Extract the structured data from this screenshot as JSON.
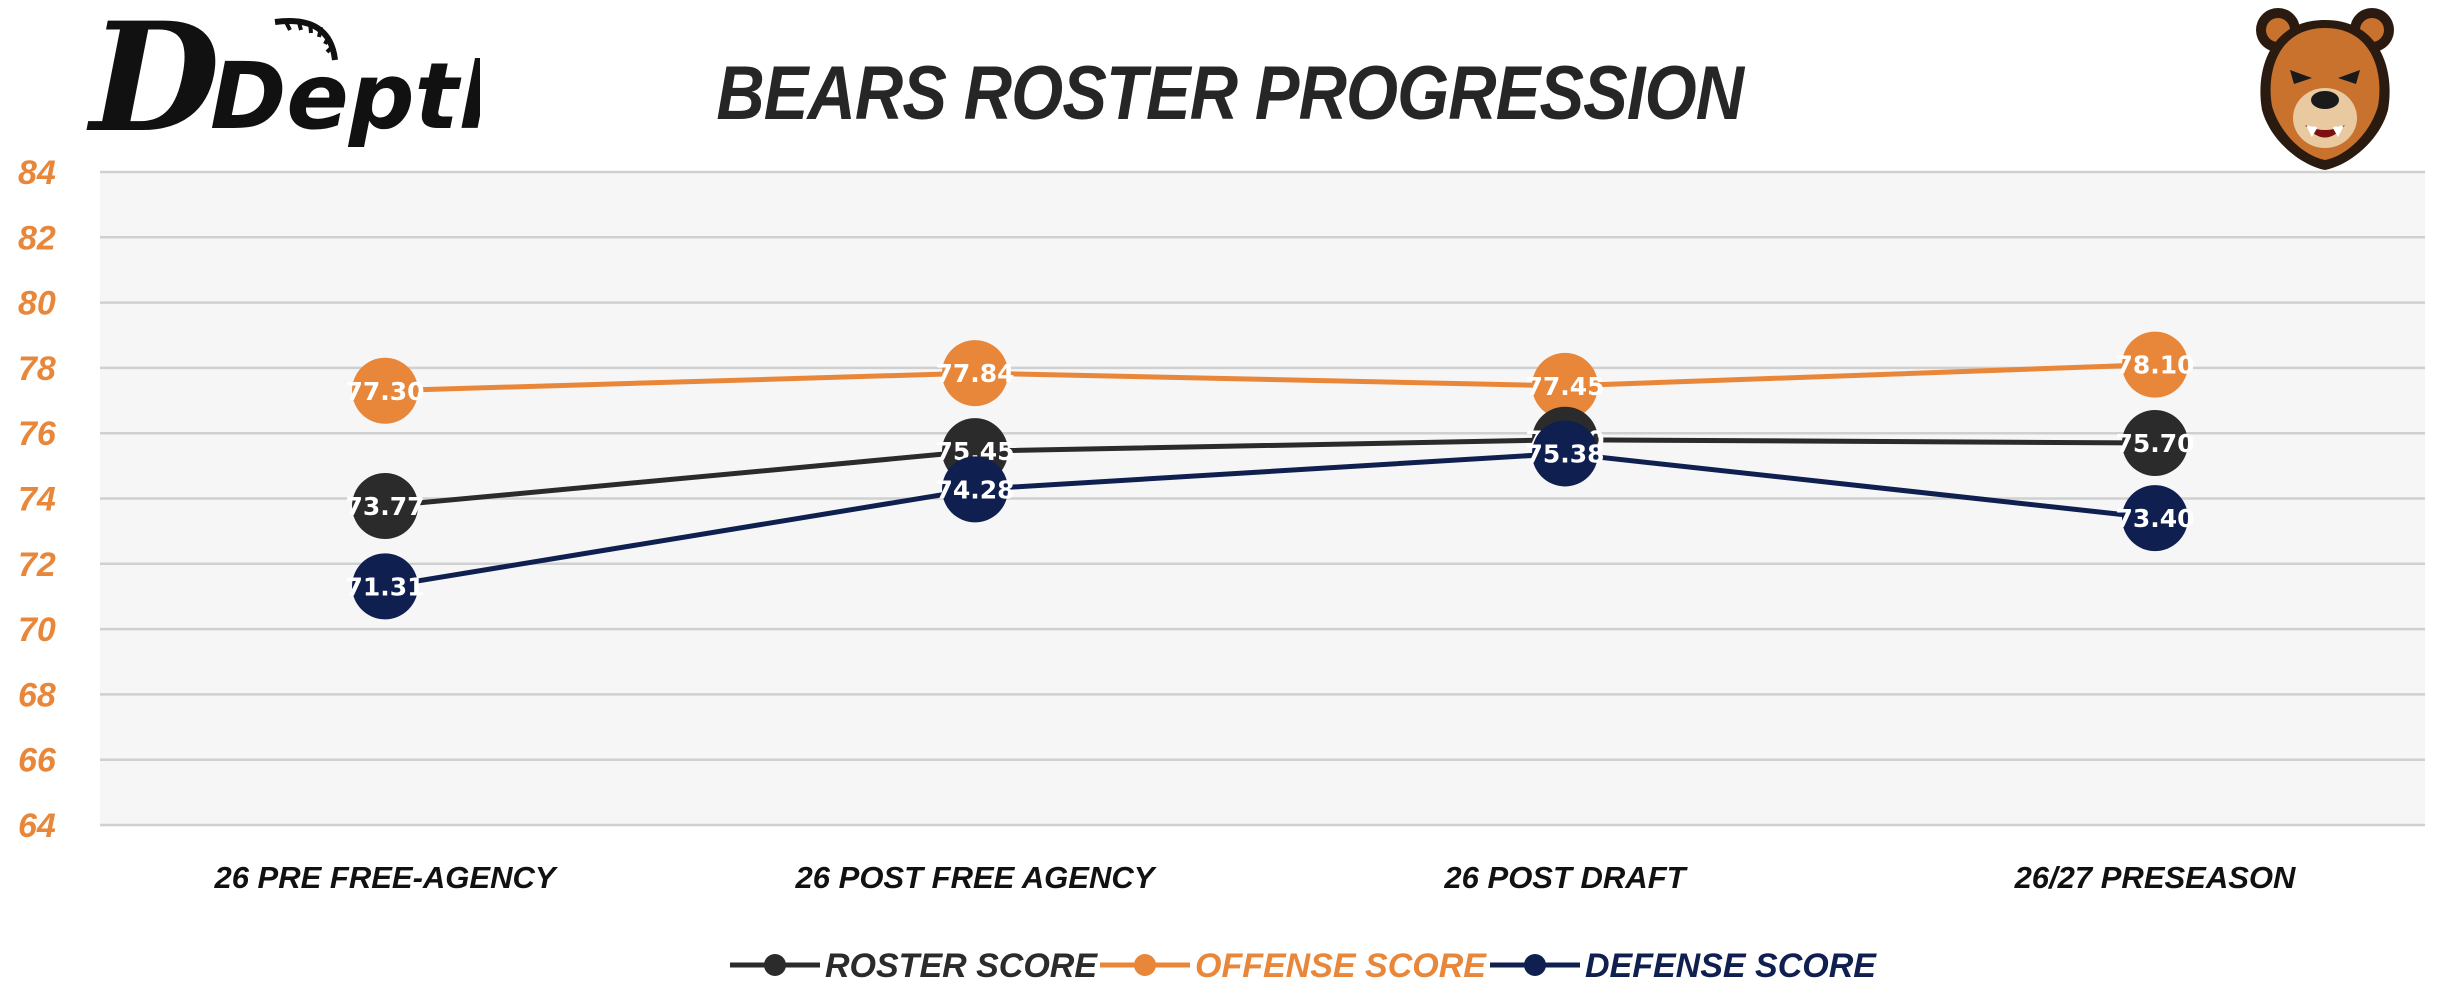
{
  "brand": {
    "logo_text": "Depth"
  },
  "colors": {
    "roster": "#2b2b2b",
    "offense": "#e8873a",
    "defense": "#0f2050",
    "axis_text": "#e8873a",
    "plot_bg": "#f6f6f6",
    "grid": "#d0d0d0"
  },
  "chart_data": {
    "type": "line",
    "title": "BEARS ROSTER PROGRESSION",
    "categories": [
      "26 PRE FREE-AGENCY",
      "26 POST FREE AGENCY",
      "26 POST DRAFT",
      "26/27 PRESEASON"
    ],
    "series": [
      {
        "name": "ROSTER SCORE",
        "color": "#2b2b2b",
        "values": [
          73.77,
          75.45,
          75.8,
          75.7
        ],
        "labels": [
          "73.77",
          "75.45",
          "75.80",
          "75.70"
        ]
      },
      {
        "name": "OFFENSE SCORE",
        "color": "#e8873a",
        "values": [
          77.3,
          77.84,
          77.45,
          78.1
        ],
        "labels": [
          "77.30",
          "77.84",
          "77.45",
          "78.10"
        ]
      },
      {
        "name": "DEFENSE SCORE",
        "color": "#0f2050",
        "values": [
          71.31,
          74.28,
          75.38,
          73.4
        ],
        "labels": [
          "71.31",
          "74.28",
          "75.38",
          "73.40"
        ]
      }
    ],
    "ylim": [
      64,
      84
    ],
    "yticks": [
      "64",
      "66",
      "68",
      "70",
      "72",
      "74",
      "76",
      "78",
      "80",
      "82",
      "84"
    ],
    "xlabel": "",
    "ylabel": "",
    "grid": true,
    "legend_position": "bottom"
  }
}
